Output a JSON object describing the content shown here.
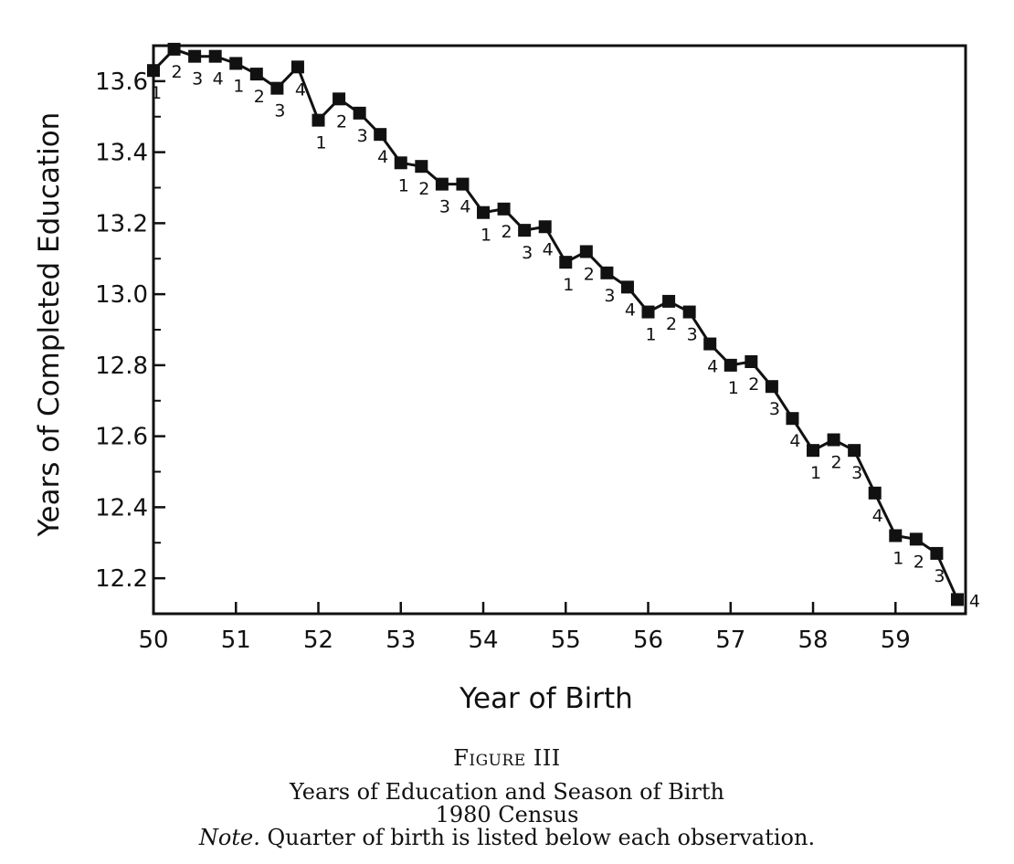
{
  "chart_data": {
    "type": "line",
    "title": "",
    "xlabel": "Year of Birth",
    "ylabel": "Years of Completed Education",
    "xlim": [
      50,
      59.85
    ],
    "ylim": [
      12.1,
      13.7
    ],
    "x_ticks": [
      50,
      51,
      52,
      53,
      54,
      55,
      56,
      57,
      58,
      59
    ],
    "x_tick_labels": [
      "50",
      "51",
      "52",
      "53",
      "54",
      "55",
      "56",
      "57",
      "58",
      "59"
    ],
    "y_ticks": [
      12.2,
      12.4,
      12.6,
      12.8,
      13.0,
      13.2,
      13.4,
      13.6
    ],
    "y_tick_labels": [
      "12.2",
      "12.4",
      "12.6",
      "12.8",
      "13.0",
      "13.2",
      "13.4",
      "13.6"
    ],
    "marker": "square",
    "grid": false,
    "series": [
      {
        "x": [
          50.0,
          50.25,
          50.5,
          50.75,
          51.0,
          51.25,
          51.5,
          51.75,
          52.0,
          52.25,
          52.5,
          52.75,
          53.0,
          53.25,
          53.5,
          53.75,
          54.0,
          54.25,
          54.5,
          54.75,
          55.0,
          55.25,
          55.5,
          55.75,
          56.0,
          56.25,
          56.5,
          56.75,
          57.0,
          57.25,
          57.5,
          57.75,
          58.0,
          58.25,
          58.5,
          58.75,
          59.0,
          59.25,
          59.5,
          59.75
        ],
        "values": [
          13.63,
          13.69,
          13.67,
          13.67,
          13.65,
          13.62,
          13.58,
          13.64,
          13.49,
          13.55,
          13.51,
          13.45,
          13.37,
          13.36,
          13.31,
          13.31,
          13.23,
          13.24,
          13.18,
          13.19,
          13.09,
          13.12,
          13.06,
          13.02,
          12.95,
          12.98,
          12.95,
          12.86,
          12.8,
          12.81,
          12.74,
          12.65,
          12.56,
          12.59,
          12.56,
          12.44,
          12.32,
          12.31,
          12.27,
          12.14
        ],
        "point_labels": [
          "1",
          "2",
          "3",
          "4",
          "1",
          "2",
          "3",
          "4",
          "1",
          "2",
          "3",
          "4",
          "1",
          "2",
          "3",
          "4",
          "1",
          "2",
          "3",
          "4",
          "1",
          "2",
          "3",
          "4",
          "1",
          "2",
          "3",
          "4",
          "1",
          "2",
          "3",
          "4",
          "1",
          "2",
          "3",
          "4",
          "1",
          "2",
          "3",
          "4"
        ]
      }
    ]
  },
  "caption": {
    "figure_number": "Figure III",
    "title": "Years of Education and Season of Birth",
    "subtitle": "1980 Census",
    "note_lead": "Note.",
    "note_text": " Quarter of birth is listed below each observation."
  }
}
